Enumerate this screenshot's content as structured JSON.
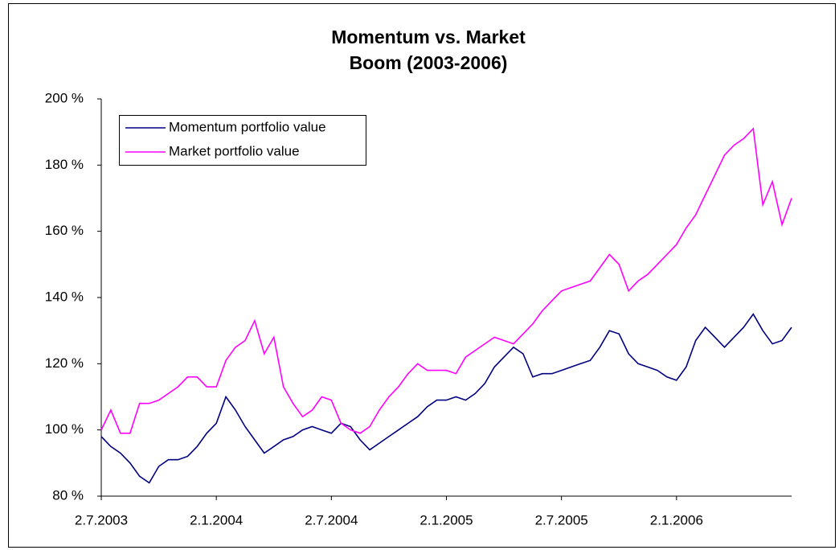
{
  "chart_data": {
    "type": "line",
    "title": [
      "Momentum vs. Market",
      "Boom (2003-2006)"
    ],
    "categories": [
      "2.7.2003",
      null,
      null,
      null,
      null,
      null,
      null,
      null,
      null,
      null,
      null,
      null,
      "2.1.2004",
      null,
      null,
      null,
      null,
      null,
      null,
      null,
      null,
      null,
      null,
      null,
      "2.7.2004",
      null,
      null,
      null,
      null,
      null,
      null,
      null,
      null,
      null,
      null,
      null,
      "2.1.2005",
      null,
      null,
      null,
      null,
      null,
      null,
      null,
      null,
      null,
      null,
      null,
      "2.7.2005",
      null,
      null,
      null,
      null,
      null,
      null,
      null,
      null,
      null,
      null,
      null,
      "2.1.2006",
      null,
      null,
      null,
      null,
      null,
      null,
      null,
      null,
      null,
      null,
      null,
      null
    ],
    "series": [
      {
        "name": "Momentum portfolio value",
        "color": "#000080",
        "values": [
          98,
          95,
          93,
          90,
          86,
          84,
          89,
          91,
          91,
          92,
          95,
          99,
          102,
          110,
          106,
          101,
          97,
          93,
          95,
          97,
          98,
          100,
          101,
          100,
          99,
          102,
          101,
          97,
          94,
          96,
          98,
          100,
          102,
          104,
          107,
          109,
          109,
          110,
          109,
          111,
          114,
          119,
          122,
          125,
          123,
          116,
          117,
          117,
          118,
          119,
          120,
          121,
          125,
          130,
          129,
          123,
          120,
          119,
          118,
          116,
          115,
          119,
          127,
          131,
          128,
          125,
          128,
          131,
          135,
          130,
          126,
          127,
          131
        ]
      },
      {
        "name": "Market portfolio value",
        "color": "#ff00ff",
        "values": [
          100,
          106,
          99,
          99,
          108,
          108,
          109,
          111,
          113,
          116,
          116,
          113,
          113,
          121,
          125,
          127,
          133,
          123,
          128,
          113,
          108,
          104,
          106,
          110,
          109,
          102,
          100,
          99,
          101,
          106,
          110,
          113,
          117,
          120,
          118,
          118,
          118,
          117,
          122,
          124,
          126,
          128,
          127,
          126,
          129,
          132,
          136,
          139,
          142,
          143,
          144,
          145,
          149,
          153,
          150,
          142,
          145,
          147,
          150,
          153,
          156,
          161,
          165,
          171,
          177,
          183,
          186,
          188,
          191,
          168,
          175,
          162,
          170
        ]
      }
    ],
    "ylim": [
      80,
      200
    ],
    "yticks": [
      {
        "value": 80,
        "label": "80 %"
      },
      {
        "value": 100,
        "label": "100 %"
      },
      {
        "value": 120,
        "label": "120 %"
      },
      {
        "value": 140,
        "label": "140 %"
      },
      {
        "value": 160,
        "label": "160 %"
      },
      {
        "value": 180,
        "label": "180 %"
      },
      {
        "value": 200,
        "label": "200 %"
      }
    ],
    "legend": "upper left"
  }
}
